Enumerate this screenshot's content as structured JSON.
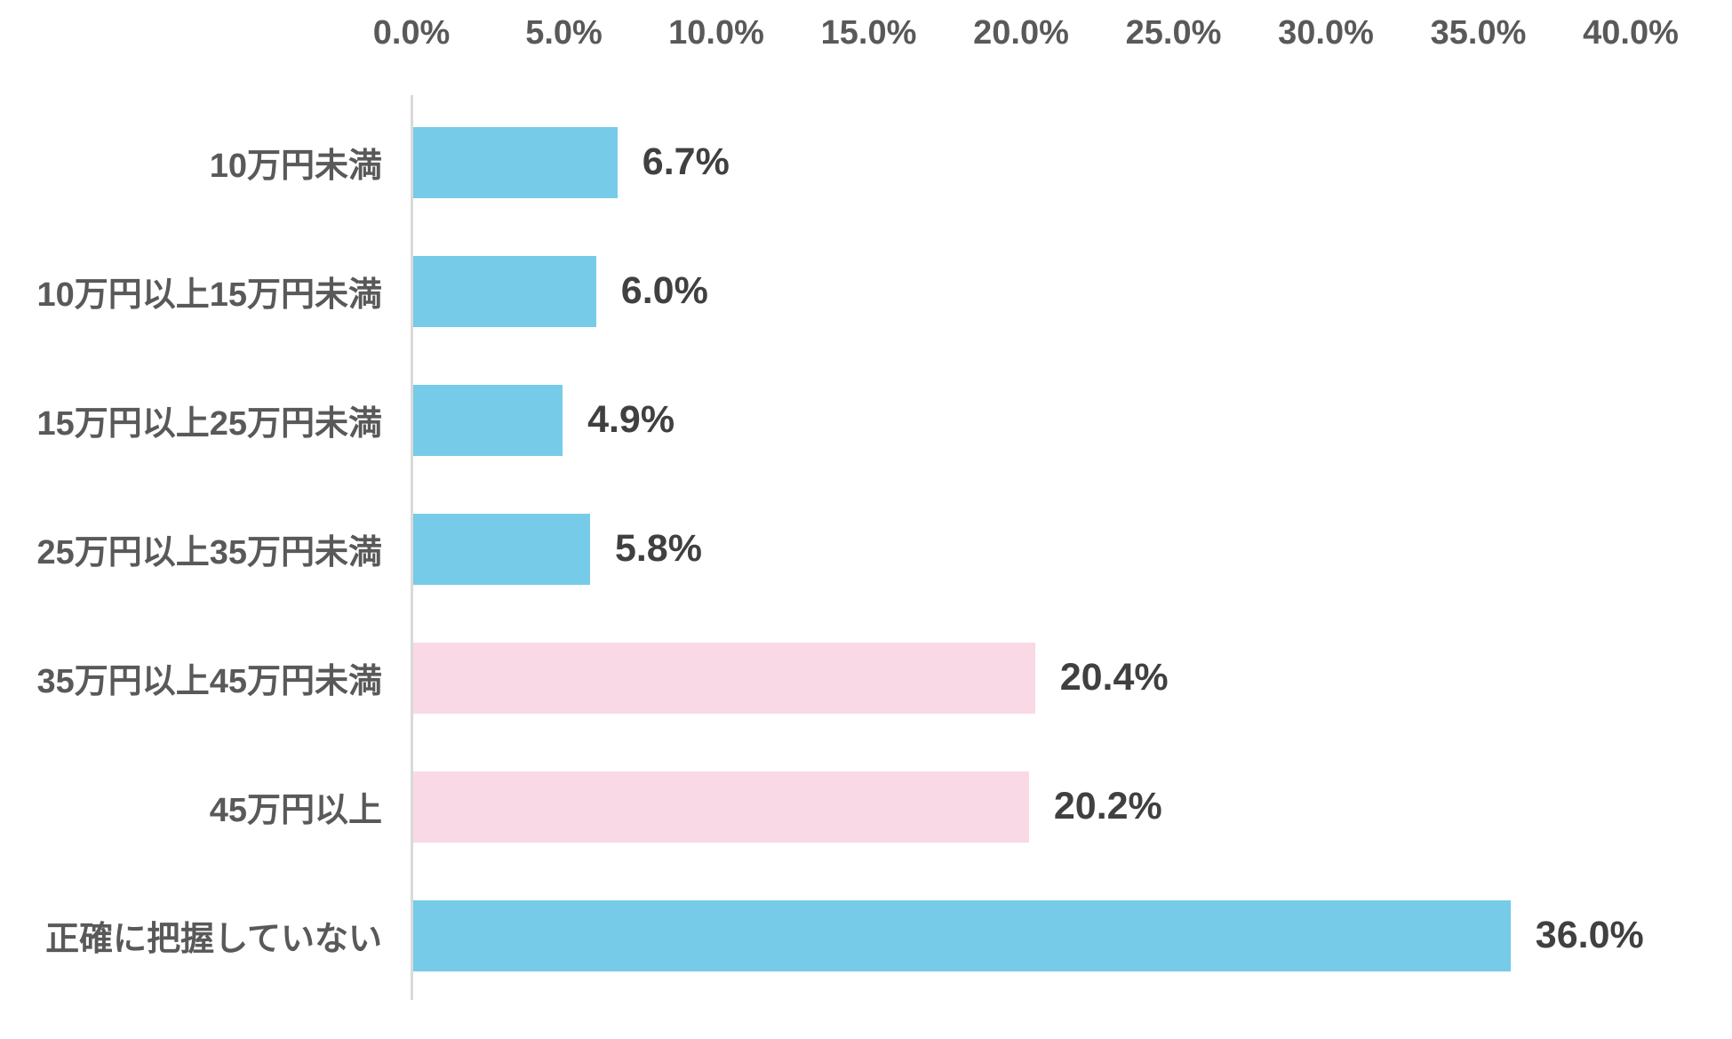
{
  "chart_data": {
    "type": "bar",
    "orientation": "horizontal",
    "title": "",
    "xlabel": "",
    "ylabel": "",
    "categories": [
      "10万円未満",
      "10万円以上15万円未満",
      "15万円以上25万円未満",
      "25万円以上35万円未満",
      "35万円以上45万円未満",
      "45万円以上",
      "正確に把握していない"
    ],
    "values": [
      6.7,
      6.0,
      4.9,
      5.8,
      20.4,
      20.2,
      36.0
    ],
    "value_labels": [
      "6.7%",
      "6.0%",
      "4.9%",
      "5.8%",
      "20.4%",
      "20.2%",
      "36.0%"
    ],
    "bar_colors": [
      "#76CBE8",
      "#76CBE8",
      "#76CBE8",
      "#76CBE8",
      "#F9D9E5",
      "#F9D9E5",
      "#76CBE8"
    ],
    "xlim": [
      0,
      40
    ],
    "x_ticks": [
      "0.0%",
      "5.0%",
      "10.0%",
      "15.0%",
      "20.0%",
      "25.0%",
      "30.0%",
      "35.0%",
      "40.0%"
    ],
    "x_tick_values": [
      0,
      5,
      10,
      15,
      20,
      25,
      30,
      35,
      40
    ],
    "tick_position": "top",
    "grid": false,
    "legend": false
  },
  "colors": {
    "bar_blue": "#76CBE8",
    "bar_pink": "#F9D9E5",
    "tick_text": "#595959",
    "category_text": "#595959",
    "value_text": "#404040",
    "axis_line": "#D9D9D9",
    "background": "#FFFFFF"
  }
}
